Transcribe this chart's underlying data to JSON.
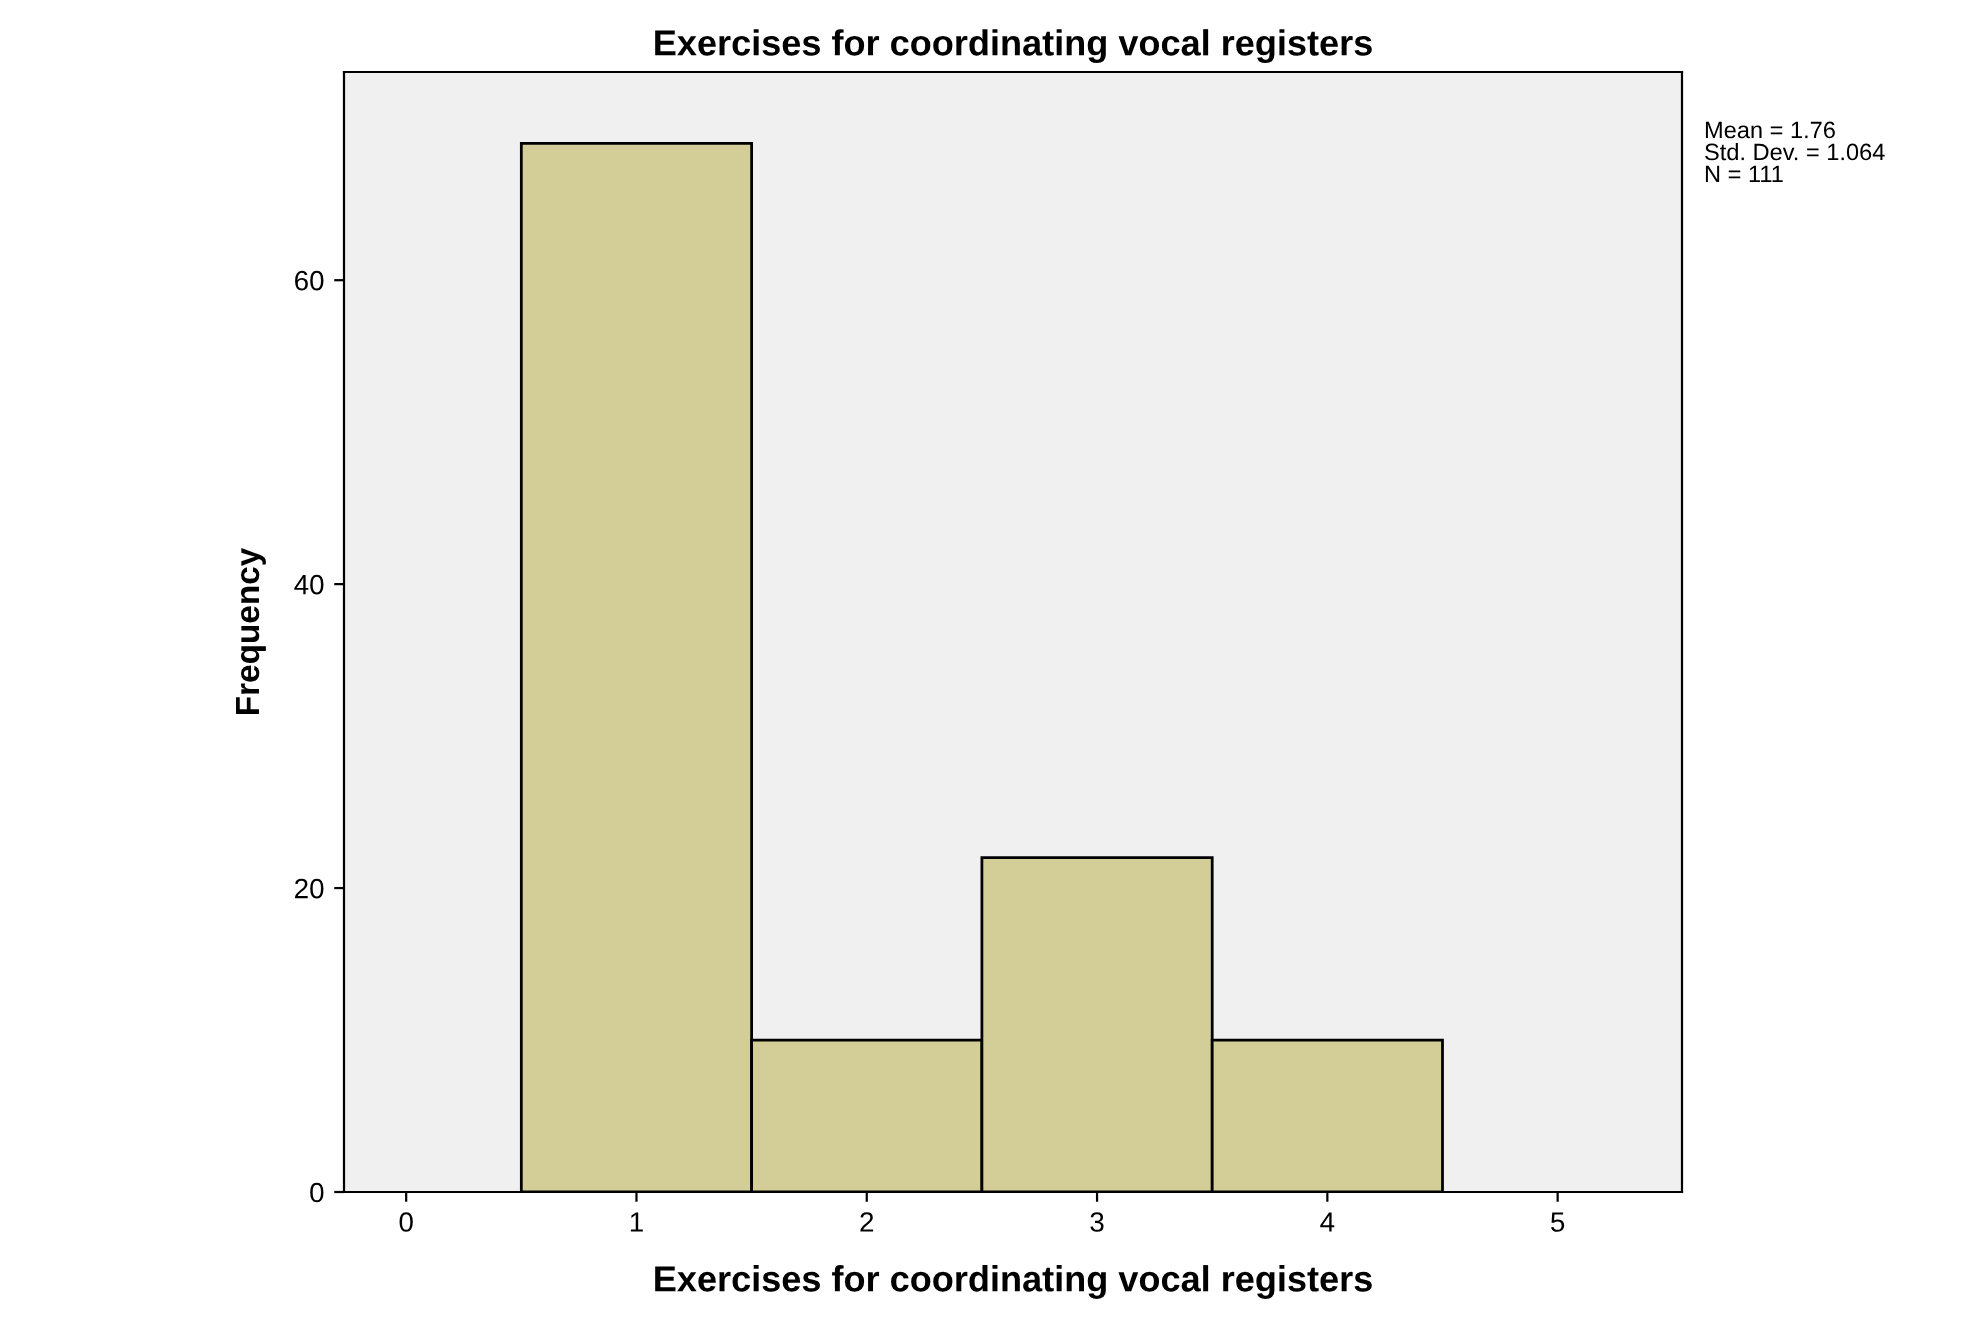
{
  "chart_data": {
    "type": "histogram",
    "title": "Exercises for coordinating vocal registers",
    "xlabel": "Exercises for coordinating vocal registers",
    "ylabel": "Frequency",
    "bins": [
      0.5,
      1.5,
      2.5,
      3.5,
      4.5
    ],
    "values": [
      69,
      10,
      22,
      10
    ],
    "color": "#d3ce97",
    "xlim": [
      -0.27,
      5.54
    ],
    "xticks": [
      0,
      1,
      2,
      3,
      4,
      5
    ],
    "ylim": [
      0,
      73.7
    ],
    "yticks": [
      0,
      20,
      40,
      60
    ],
    "grid": false,
    "annotations": [
      "Mean = 1.76",
      "Std. Dev. = 1.064",
      "N = 111"
    ]
  }
}
